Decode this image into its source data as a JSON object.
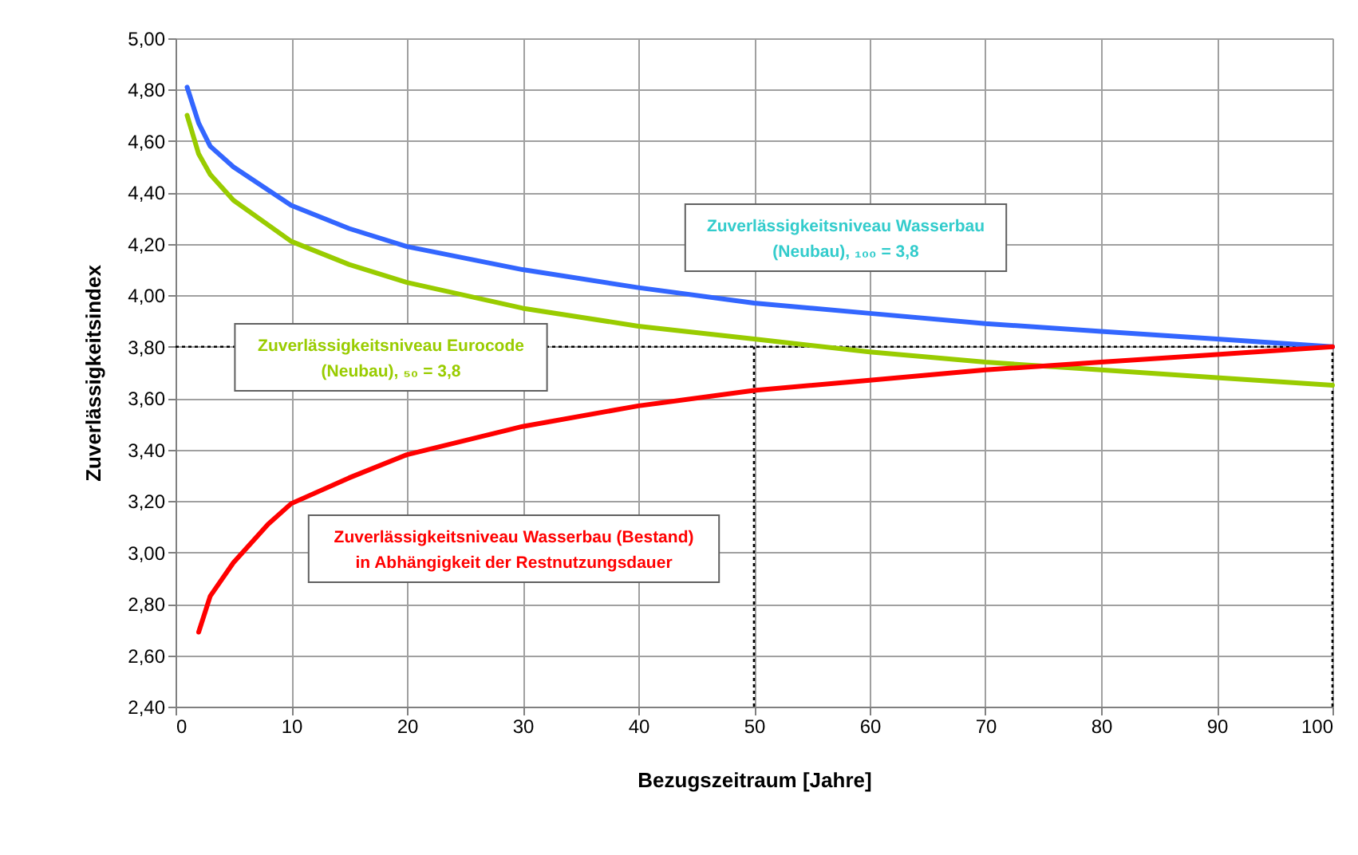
{
  "chart_data": {
    "type": "line",
    "xlabel": "Bezugszeitraum [Jahre]",
    "ylabel": "Zuverlässigkeitsindex",
    "xlim": [
      0,
      100
    ],
    "xticks": [
      0,
      10,
      20,
      30,
      40,
      50,
      60,
      70,
      80,
      90,
      100
    ],
    "ylim": [
      2.4,
      5.0
    ],
    "yticks": [
      {
        "value": 2.4,
        "label": "2,40"
      },
      {
        "value": 2.6,
        "label": "2,60"
      },
      {
        "value": 2.8,
        "label": "2,80"
      },
      {
        "value": 3.0,
        "label": "3,00"
      },
      {
        "value": 3.2,
        "label": "3,20"
      },
      {
        "value": 3.4,
        "label": "3,40"
      },
      {
        "value": 3.6,
        "label": "3,60"
      },
      {
        "value": 3.8,
        "label": "3,80"
      },
      {
        "value": 4.0,
        "label": "4,00"
      },
      {
        "value": 4.2,
        "label": "4,20"
      },
      {
        "value": 4.4,
        "label": "4,40"
      },
      {
        "value": 4.6,
        "label": "4,60"
      },
      {
        "value": 4.8,
        "label": "4,80"
      },
      {
        "value": 5.0,
        "label": "5,00"
      }
    ],
    "grid": true,
    "marker": "none",
    "line_style": "solid",
    "series": [
      {
        "color": "#3366ff",
        "x": [
          1,
          2,
          3,
          5,
          10,
          15,
          20,
          30,
          40,
          50,
          60,
          70,
          80,
          90,
          100
        ],
        "values": [
          4.81,
          4.67,
          4.58,
          4.5,
          4.35,
          4.26,
          4.19,
          4.1,
          4.03,
          3.97,
          3.93,
          3.89,
          3.86,
          3.83,
          3.8
        ]
      },
      {
        "color": "#99cc00",
        "x": [
          1,
          2,
          3,
          5,
          10,
          15,
          20,
          30,
          40,
          50,
          60,
          70,
          80,
          90,
          100
        ],
        "values": [
          4.7,
          4.55,
          4.47,
          4.37,
          4.21,
          4.12,
          4.05,
          3.95,
          3.88,
          3.83,
          3.78,
          3.74,
          3.71,
          3.68,
          3.65
        ]
      },
      {
        "color": "#ff0000",
        "x": [
          2,
          3,
          5,
          8,
          10,
          15,
          20,
          30,
          40,
          50,
          60,
          70,
          80,
          90,
          100
        ],
        "values": [
          2.69,
          2.83,
          2.96,
          3.11,
          3.19,
          3.29,
          3.38,
          3.49,
          3.57,
          3.63,
          3.67,
          3.71,
          3.74,
          3.77,
          3.8
        ]
      }
    ],
    "ref_lines": [
      {
        "axis": "y",
        "value": 3.8,
        "color": "#000000",
        "line_style": "dotted"
      },
      {
        "axis": "x",
        "value": 50,
        "color": "#000000",
        "line_style": "dotted"
      },
      {
        "axis": "x",
        "value": 100,
        "color": "#000000",
        "line_style": "dotted"
      }
    ],
    "annotations": [
      "Zuverlässigkeitsniveau Wasserbau\n(Neubau), ₁₀₀ = 3,8",
      "Zuverlässigkeitsniveau Eurocode\n(Neubau), ₅₀ = 3,8",
      "Zuverlässigkeitsniveau Wasserbau (Bestand)\nin Abhängigkeit der Restnutzungsdauer"
    ]
  }
}
